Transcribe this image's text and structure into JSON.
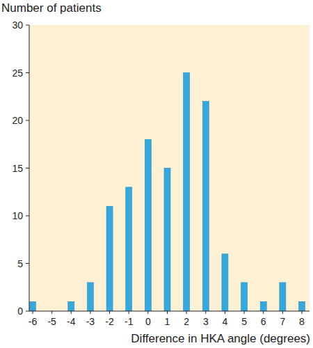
{
  "chart_data": {
    "type": "bar",
    "ylabel": "Number of patients",
    "xlabel": "Difference in HKA angle (degrees)",
    "categories": [
      "-6",
      "-5",
      "-4",
      "-3",
      "-2",
      "-1",
      "0",
      "1",
      "2",
      "3",
      "4",
      "5",
      "6",
      "7",
      "8"
    ],
    "values": [
      1,
      0,
      1,
      3,
      11,
      13,
      18,
      15,
      25,
      22,
      6,
      3,
      1,
      3,
      1
    ],
    "color": "#35a9de",
    "ylim": [
      0,
      30
    ],
    "yticks": [
      0,
      5,
      10,
      15,
      20,
      25,
      30
    ],
    "grid": false
  }
}
